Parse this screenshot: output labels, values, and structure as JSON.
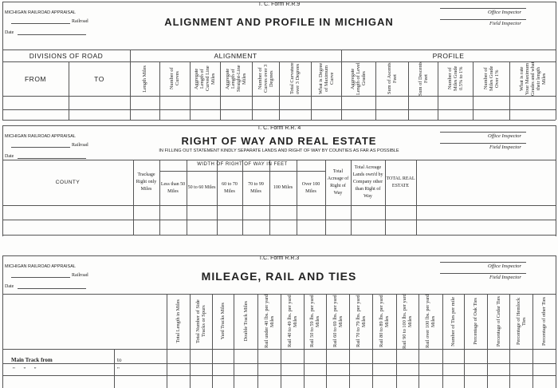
{
  "forms": [
    {
      "form_number": "T. C. Form R.R.9",
      "appraisal": "MICHIGAN RAILROAD APPRAISAL",
      "railroad_label": "Railroad",
      "date_label": "Date",
      "title": "ALIGNMENT AND PROFILE IN MICHIGAN",
      "office_inspector": "Office Inspector",
      "field_inspector": "Field Inspector",
      "groups": {
        "divisions": "DIVISIONS OF ROAD",
        "alignment": "ALIGNMENT",
        "profile": "PROFILE"
      },
      "columns": [
        "FROM",
        "TO",
        "Length Miles",
        "Number of Curves",
        "Aggregate Length of Curved Line Miles",
        "Aggregate Length of Straight-Line Miles",
        "Number of Curves over 3 Degrees",
        "Total Curvature over 3 Degrees",
        "What is Degree of Maximum Curve",
        "Aggregate Length of Level Grades",
        "Sum of Ascents Feet",
        "Sum of Descents Feet",
        "Number of Miles Grade 0.5% to 1%",
        "Number of Miles Grade Over 1%",
        "What is rate Your Maximum Grades and what their length Miles"
      ]
    },
    {
      "form_number": "T. C. Form R.R. 4",
      "appraisal": "MICHIGAN RAILROAD APPRAISAL",
      "railroad_label": "Railroad",
      "date_label": "Date",
      "title": "RIGHT OF WAY AND REAL ESTATE",
      "subtitle": "IN FILLING OUT STATEMENT KINDLY SEPARATE LANDS AND RIGHT OF WAY BY COUNTIES AS FAR AS POSSIBLE",
      "office_inspector": "Office Inspector",
      "field_inspector": "Field Inspector",
      "groups": {
        "width": "WIDTH OF RIGHT OF WAY IN FEET"
      },
      "columns": [
        "COUNTY",
        "Trackage Right only Miles",
        "Less than 50 Miles",
        "50 to 60 Miles",
        "60 to 70 Miles",
        "70 to 99 Miles",
        "100 Miles",
        "Over 100 Miles",
        "Total Acreage of Right of Way",
        "Total Acreage Lands own'd by Company other than Right of Way",
        "TOTAL REAL ESTATE",
        ""
      ]
    },
    {
      "form_number": "T.C. Form R.R.3",
      "appraisal": "MICHIGAN RAILROAD APPRAISAL",
      "railroad_label": "Railroad",
      "date_label": "Date",
      "title": "MILEAGE, RAIL AND TIES",
      "office_inspector": "Office Inspector",
      "field_inspector": "Field Inspector",
      "columns": [
        "",
        "",
        "Total Length in Miles",
        "Total Number of Side Tracks or Spurs",
        "Yard Tracks Miles",
        "Double Track Miles",
        "Rail under 40 lbs. per yard Miles",
        "Rail 40 to 49 lbs. per yard Miles",
        "Rail 50 to 59 lbs. per yard Miles",
        "Rail 60 to 69 lbs. per yard Miles",
        "Rail 70 to 79 lbs. per yard Miles",
        "Rail 80 to 89 lbs. per yard Miles",
        "Rail 90 to 100 lbs. per yard Miles",
        "Rail over 100 lbs. per yard Miles",
        "Number of Ties per mile",
        "Percentage of Oak Ties",
        "Percentage of Cedar Ties",
        "Percentage of Hemlock Ties",
        "Percentage of other Ties"
      ],
      "rows": {
        "main_track_from": "Main Track from",
        "to": "to",
        "ditto": "\"",
        "ditto_row": "\"      \"      \""
      }
    }
  ]
}
